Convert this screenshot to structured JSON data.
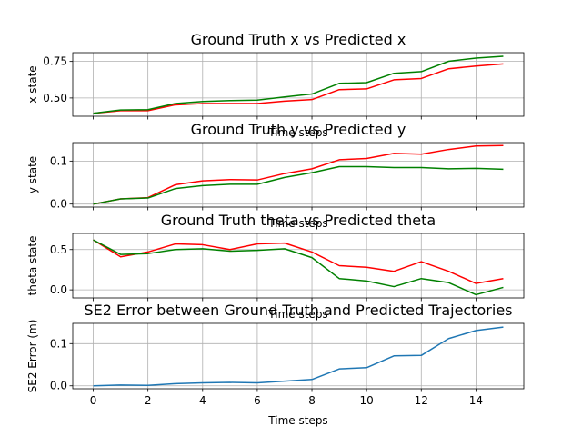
{
  "chart_data": [
    {
      "type": "line",
      "title": "Ground Truth x vs Predicted x",
      "xlabel": "Time steps",
      "ylabel": "x state",
      "grid": true,
      "xlim": [
        -0.75,
        15.75
      ],
      "ylim": [
        0.375,
        0.81
      ],
      "yticks": [
        0.5,
        0.75
      ],
      "ytick_labels": [
        "0.50",
        "0.75"
      ],
      "x": [
        0,
        1,
        2,
        3,
        4,
        5,
        6,
        7,
        8,
        9,
        10,
        11,
        12,
        13,
        14,
        15
      ],
      "series": [
        {
          "color": "#ff0000",
          "values": [
            0.395,
            0.413,
            0.413,
            0.453,
            0.462,
            0.462,
            0.462,
            0.478,
            0.489,
            0.557,
            0.562,
            0.624,
            0.633,
            0.7,
            0.718,
            0.733
          ]
        },
        {
          "color": "#008000",
          "values": [
            0.395,
            0.418,
            0.42,
            0.462,
            0.476,
            0.482,
            0.485,
            0.507,
            0.527,
            0.6,
            0.605,
            0.669,
            0.68,
            0.751,
            0.773,
            0.785
          ]
        }
      ]
    },
    {
      "type": "line",
      "title": "Ground Truth y vs Predicted y",
      "xlabel": "Time steps",
      "ylabel": "y state",
      "grid": true,
      "xlim": [
        -0.75,
        15.75
      ],
      "ylim": [
        -0.007,
        0.143
      ],
      "yticks": [
        0.0,
        0.1
      ],
      "ytick_labels": [
        "0.0",
        "0.1"
      ],
      "x": [
        0,
        1,
        2,
        3,
        4,
        5,
        6,
        7,
        8,
        9,
        10,
        11,
        12,
        13,
        14,
        15
      ],
      "series": [
        {
          "color": "#ff0000",
          "values": [
            0.0,
            0.012,
            0.015,
            0.045,
            0.054,
            0.057,
            0.056,
            0.071,
            0.082,
            0.103,
            0.106,
            0.118,
            0.116,
            0.127,
            0.135,
            0.136
          ]
        },
        {
          "color": "#008000",
          "values": [
            0.0,
            0.012,
            0.014,
            0.036,
            0.043,
            0.046,
            0.046,
            0.062,
            0.073,
            0.087,
            0.087,
            0.085,
            0.085,
            0.082,
            0.083,
            0.081
          ]
        }
      ]
    },
    {
      "type": "line",
      "title": "Ground Truth theta vs Predicted theta",
      "xlabel": "Time steps",
      "ylabel": "theta state",
      "grid": true,
      "xlim": [
        -0.75,
        15.75
      ],
      "ylim": [
        -0.1,
        0.7
      ],
      "yticks": [
        0.0,
        0.5
      ],
      "ytick_labels": [
        "0.0",
        "0.5"
      ],
      "x": [
        0,
        1,
        2,
        3,
        4,
        5,
        6,
        7,
        8,
        9,
        10,
        11,
        12,
        13,
        14,
        15
      ],
      "series": [
        {
          "color": "#ff0000",
          "values": [
            0.62,
            0.41,
            0.47,
            0.57,
            0.56,
            0.5,
            0.57,
            0.58,
            0.47,
            0.3,
            0.28,
            0.23,
            0.35,
            0.23,
            0.08,
            0.14
          ]
        },
        {
          "color": "#008000",
          "values": [
            0.62,
            0.44,
            0.45,
            0.5,
            0.51,
            0.48,
            0.49,
            0.51,
            0.4,
            0.14,
            0.11,
            0.04,
            0.14,
            0.09,
            -0.06,
            0.03
          ]
        }
      ]
    },
    {
      "type": "line",
      "title": "SE2 Error between Ground Truth and Predicted Trajectories",
      "xlabel": "Time steps",
      "ylabel": "SE2 Error (m)",
      "grid": true,
      "xlim": [
        -0.75,
        15.75
      ],
      "ylim": [
        -0.007,
        0.148
      ],
      "yticks": [
        0.0,
        0.1
      ],
      "ytick_labels": [
        "0.0",
        "0.1"
      ],
      "xticks": [
        0,
        2,
        4,
        6,
        8,
        10,
        12,
        14
      ],
      "xtick_labels": [
        "0",
        "2",
        "4",
        "6",
        "8",
        "10",
        "12",
        "14"
      ],
      "x": [
        0,
        1,
        2,
        3,
        4,
        5,
        6,
        7,
        8,
        9,
        10,
        11,
        12,
        13,
        14,
        15
      ],
      "series": [
        {
          "color": "#1f77b4",
          "values": [
            0.0,
            0.002,
            0.001,
            0.005,
            0.007,
            0.008,
            0.007,
            0.011,
            0.015,
            0.04,
            0.043,
            0.071,
            0.072,
            0.112,
            0.131,
            0.139
          ]
        }
      ]
    }
  ]
}
